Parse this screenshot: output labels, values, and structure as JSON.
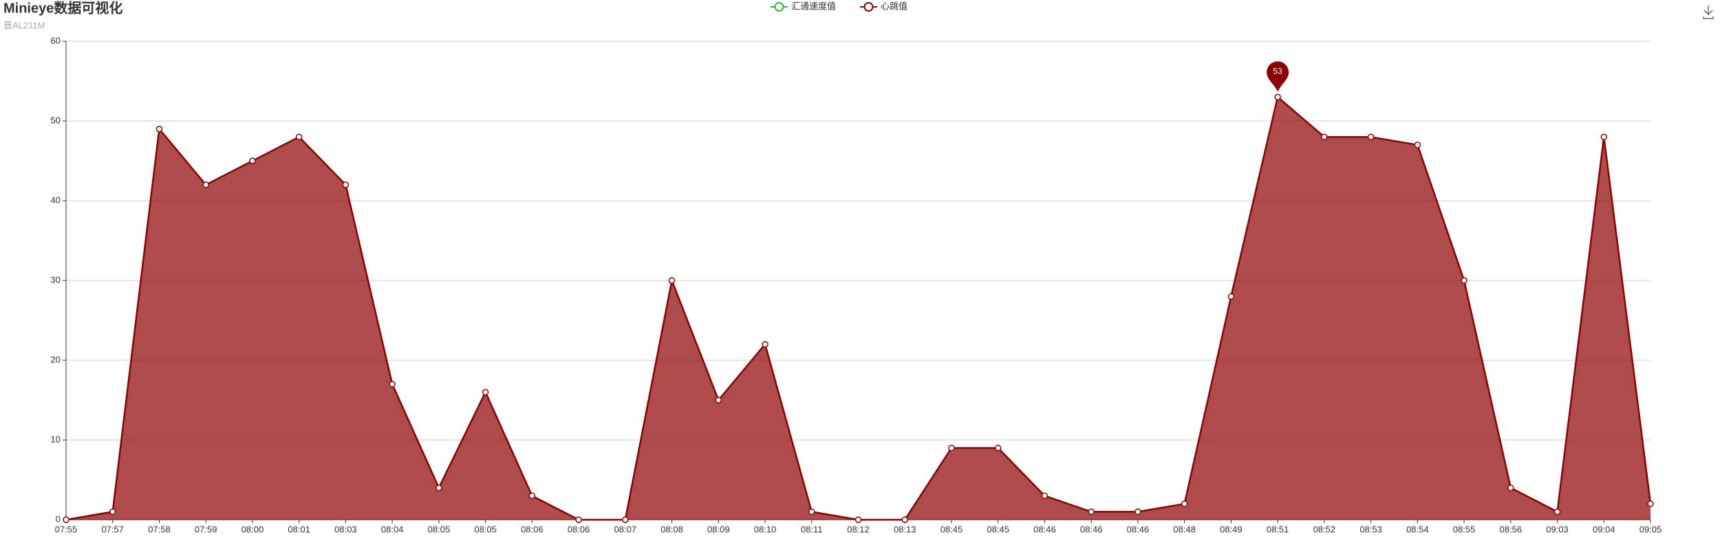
{
  "chart_data": {
    "type": "area",
    "title": "Minieye数据可视化",
    "subtitle": "晋AL211M",
    "categories": [
      "07:55",
      "07:57",
      "07:58",
      "07:59",
      "08:00",
      "08:01",
      "08:03",
      "08:04",
      "08:05",
      "08:05",
      "08:06",
      "08:06",
      "08:07",
      "08:08",
      "08:09",
      "08:10",
      "08:11",
      "08:12",
      "08:13",
      "08:45",
      "08:45",
      "08:46",
      "08:46",
      "08:46",
      "08:48",
      "08:49",
      "08:51",
      "08:52",
      "08:53",
      "08:54",
      "08:55",
      "08:56",
      "09:03",
      "09:04",
      "09:05"
    ],
    "series": [
      {
        "name": "汇通速度值",
        "color": "#3cb043",
        "values": [
          null,
          null,
          null,
          null,
          null,
          null,
          null,
          null,
          null,
          null,
          null,
          null,
          null,
          null,
          null,
          null,
          null,
          null,
          null,
          null,
          null,
          null,
          null,
          null,
          null,
          null,
          null,
          null,
          null,
          null,
          null,
          null,
          null,
          null,
          null
        ]
      },
      {
        "name": "心跳值",
        "color": "#8b0000",
        "values": [
          0,
          1,
          49,
          42,
          45,
          48,
          42,
          17,
          4,
          16,
          3,
          0,
          0,
          30,
          15,
          22,
          1,
          0,
          0,
          9,
          9,
          3,
          1,
          1,
          2,
          28,
          53,
          48,
          48,
          47,
          30,
          4,
          1,
          48,
          2
        ]
      }
    ],
    "ylim": [
      0,
      60
    ],
    "yticks": [
      0,
      10,
      20,
      30,
      40,
      50,
      60
    ],
    "grid": true
  }
}
